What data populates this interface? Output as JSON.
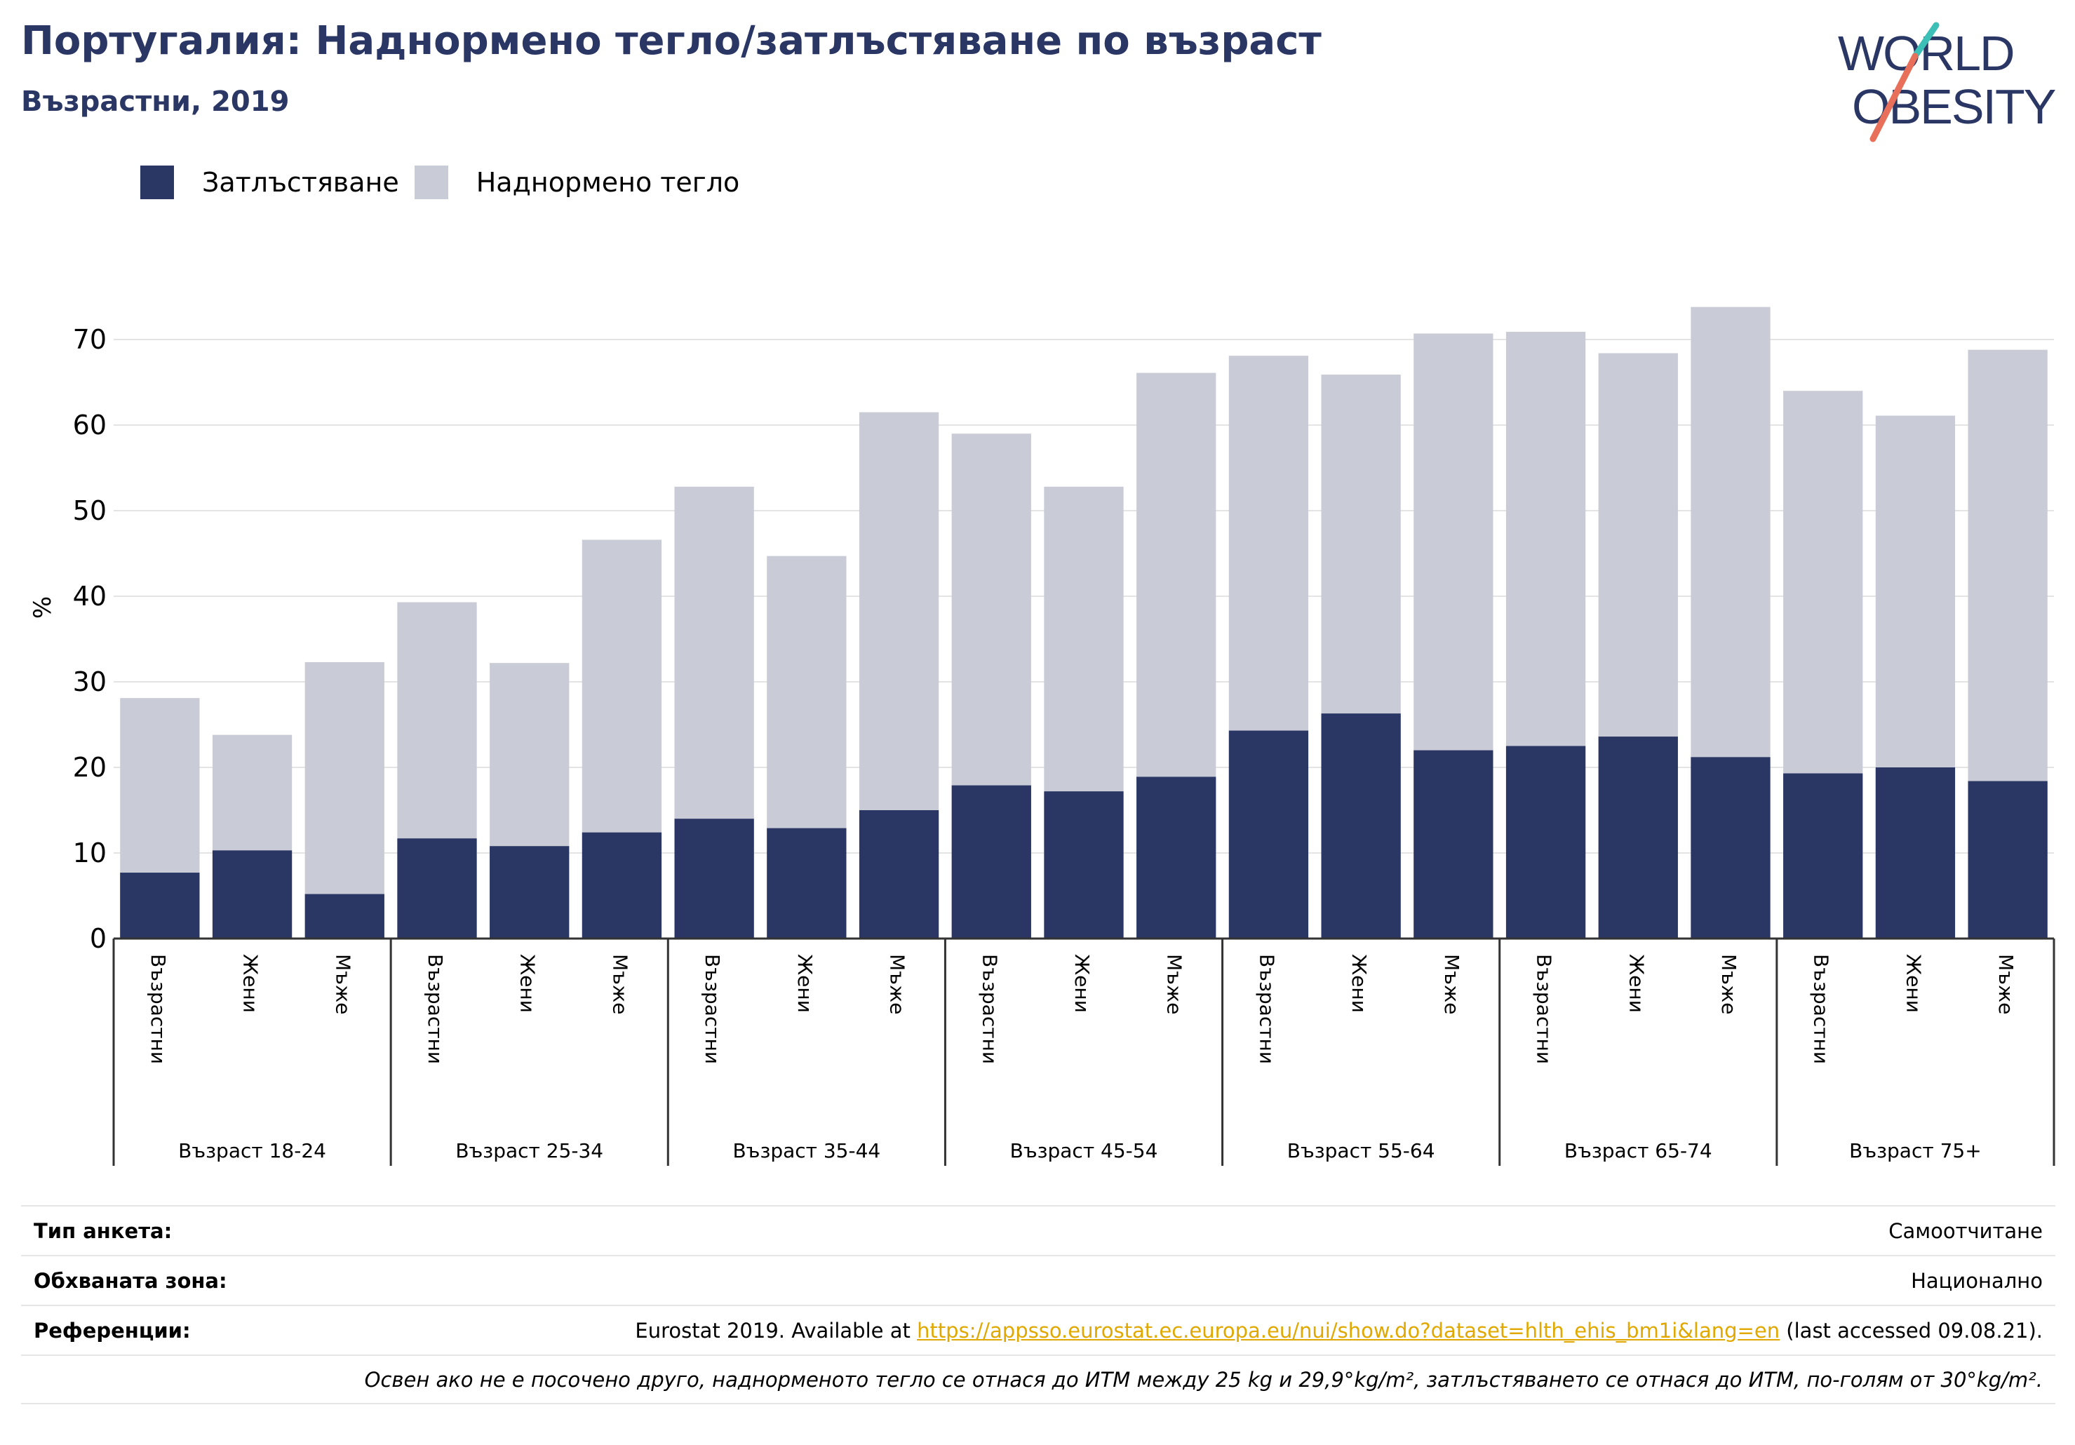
{
  "header": {
    "title": "Португалия: Наднормено тегло/затлъстяване по възраст",
    "subtitle": "Възрастни, 2019"
  },
  "logo": {
    "line1": "WORLD",
    "line2": "OBESITY",
    "colors": {
      "text": "#2a3663",
      "slash_teal": "#3bbfb7",
      "slash_coral": "#e8705a"
    }
  },
  "legend": [
    {
      "name": "Затлъстяване",
      "color": "#2a3663"
    },
    {
      "name": "Наднормено тегло",
      "color": "#c9cbd6"
    }
  ],
  "chart_data": {
    "type": "bar",
    "stacked": false,
    "ylabel": "%",
    "ylim": [
      0,
      75
    ],
    "yticks": [
      0,
      10,
      20,
      30,
      40,
      50,
      60,
      70
    ],
    "grid": true,
    "legend_position": "top-left",
    "groups": [
      "Възраст 18-24",
      "Възраст 25-34",
      "Възраст 35-44",
      "Възраст 45-54",
      "Възраст 55-64",
      "Възраст 65-74",
      "Възраст 75+"
    ],
    "subcategories": [
      "Възрастни",
      "Жени",
      "Мъже"
    ],
    "series": [
      {
        "name": "Затлъстяване",
        "color": "#2a3663",
        "values": [
          7.7,
          10.3,
          5.2,
          11.7,
          10.8,
          12.4,
          14.0,
          12.9,
          15.0,
          17.9,
          17.2,
          18.9,
          24.3,
          26.3,
          22.0,
          22.5,
          23.6,
          21.2,
          19.3,
          20.0,
          18.4
        ]
      },
      {
        "name": "Наднормено тегло",
        "color": "#c9cbd6",
        "values": [
          28.1,
          23.8,
          32.3,
          39.3,
          32.2,
          46.6,
          52.8,
          44.7,
          61.5,
          59.0,
          52.8,
          66.1,
          68.1,
          65.9,
          70.7,
          70.9,
          68.4,
          73.8,
          64.0,
          61.1,
          68.8
        ]
      }
    ]
  },
  "info": {
    "survey_type_label": "Тип анкета:",
    "survey_type_value": "Самоотчитане",
    "area_label": "Обхваната зона:",
    "area_value": "Национално",
    "references_label": "Референции:",
    "references_prefix": "Eurostat 2019. Available at ",
    "references_link": "https://appsso.eurostat.ec.europa.eu/nui/show.do?dataset=hlth_ehis_bm1i&lang=en",
    "references_suffix": " (last accessed 09.08.21).",
    "note": "Освен ако не е посочено друго, наднорменото тегло се отнася до ИТМ между 25 kg и 29,9°kg/m², затлъстяването се отнася до ИТМ, по-голям от 30°kg/m²."
  }
}
